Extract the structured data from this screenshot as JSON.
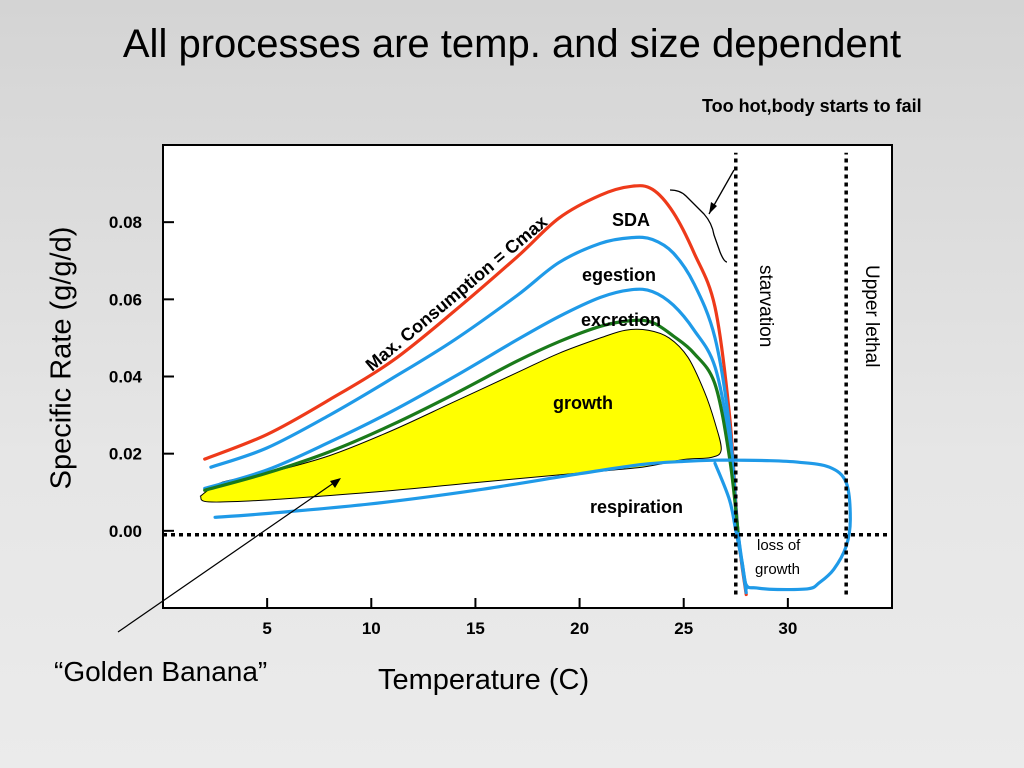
{
  "slide": {
    "title": "All processes are temp. and size dependent",
    "note": "Too hot,body starts to fail",
    "golden_banana": "“Golden Banana”"
  },
  "chart_data": {
    "type": "line",
    "xlabel": "Temperature (C)",
    "ylabel": "Specific Rate (g/g/d)",
    "x_ticks": [
      "5",
      "10",
      "15",
      "20",
      "25",
      "30"
    ],
    "y_ticks": [
      "0.00",
      "0.02",
      "0.04",
      "0.06",
      "0.08"
    ],
    "xlim": [
      0,
      35
    ],
    "ylim": [
      -0.02,
      0.1
    ],
    "series": [
      {
        "name": "Max. Consumption = Cmax",
        "color": "#ee3a1a",
        "x": [
          2,
          5,
          8,
          11,
          14,
          17,
          19,
          21,
          22.5,
          23.5,
          24.5,
          25.5,
          26.5,
          27.2,
          27.6,
          28.0
        ],
        "y": [
          0.0186,
          0.025,
          0.034,
          0.044,
          0.057,
          0.071,
          0.081,
          0.087,
          0.0893,
          0.0885,
          0.0825,
          0.072,
          0.058,
          0.03,
          0.0,
          -0.0165
        ]
      },
      {
        "name": "egestion",
        "color": "#1f9ae8",
        "x": [
          2.3,
          5,
          8,
          11,
          14,
          17,
          19,
          21,
          22.5,
          23.5,
          24.5,
          25.5,
          26.5,
          27.2,
          27.6,
          28.0
        ],
        "y": [
          0.0165,
          0.0215,
          0.03,
          0.0395,
          0.0495,
          0.061,
          0.0695,
          0.0745,
          0.076,
          0.0755,
          0.072,
          0.064,
          0.05,
          0.027,
          0.0,
          -0.016
        ]
      },
      {
        "name": "excretion",
        "color": "#1f9ae8",
        "x": [
          2,
          5,
          8,
          11,
          14,
          17,
          19,
          21,
          22.5,
          23.5,
          24.5,
          25.5,
          26.5,
          27.2,
          27.6,
          28.0
        ],
        "y": [
          0.011,
          0.0158,
          0.023,
          0.031,
          0.04,
          0.0495,
          0.0555,
          0.0605,
          0.0625,
          0.062,
          0.0585,
          0.052,
          0.0425,
          0.023,
          0.0,
          -0.015
        ]
      },
      {
        "name": "SDA",
        "color": "#1a7a1a",
        "x": [
          2,
          5,
          8,
          11,
          14,
          17,
          19,
          21,
          22.5,
          23.5,
          24.5,
          25.5,
          26.5,
          27.2,
          27.6
        ],
        "y": [
          0.0105,
          0.015,
          0.0205,
          0.0275,
          0.0355,
          0.044,
          0.049,
          0.053,
          0.0545,
          0.054,
          0.0505,
          0.046,
          0.038,
          0.019,
          0.0
        ]
      },
      {
        "name": "respiration",
        "color": "#1f9ae8",
        "x": [
          2.5,
          5,
          10,
          15,
          20,
          23,
          25,
          26.5,
          27.5,
          29,
          30.5,
          32,
          32.8,
          33.0,
          32.8,
          32.2,
          31.5,
          31.0,
          29.5,
          28.5,
          28.0,
          27.8,
          27.5,
          27.2,
          26.5
        ],
        "y": [
          0.0035,
          0.0045,
          0.007,
          0.0105,
          0.0148,
          0.0172,
          0.018,
          0.0183,
          0.0183,
          0.0182,
          0.0178,
          0.0165,
          0.0125,
          0.003,
          -0.004,
          -0.01,
          -0.0135,
          -0.015,
          -0.0152,
          -0.0148,
          -0.014,
          -0.008,
          0.0,
          0.008,
          0.0175
        ]
      },
      {
        "name": "growth",
        "color": "#ffff00",
        "x": [
          1.8,
          2.2,
          5,
          10,
          15,
          20,
          23,
          25,
          26.3,
          26.8,
          26.5,
          26.0,
          25.2,
          24.3,
          23.3,
          22.2,
          21,
          19,
          17,
          14,
          11,
          8,
          5,
          2.8,
          1.8
        ],
        "y": [
          0.009,
          0.0075,
          0.008,
          0.01,
          0.0125,
          0.015,
          0.0165,
          0.0185,
          0.019,
          0.021,
          0.028,
          0.036,
          0.045,
          0.05,
          0.052,
          0.052,
          0.05,
          0.046,
          0.041,
          0.0335,
          0.026,
          0.0195,
          0.015,
          0.0125,
          0.009
        ]
      }
    ],
    "annotations": [
      "SDA",
      "egestion",
      "excretion",
      "growth",
      "respiration",
      "starvation",
      "Upper lethal",
      "loss of",
      "growth"
    ],
    "vlines": [
      {
        "x": 27.5,
        "y": [
          -0.0165,
          0.098
        ]
      },
      {
        "x": 32.8,
        "y": [
          -0.0165,
          0.098
        ]
      }
    ],
    "hline": {
      "y": -0.001,
      "x": [
        0,
        35
      ]
    },
    "colors": {
      "cmax": "#ee3a1a",
      "blue": "#1f9ae8",
      "green": "#1a7a1a",
      "growth_fill": "#ffff00"
    }
  }
}
